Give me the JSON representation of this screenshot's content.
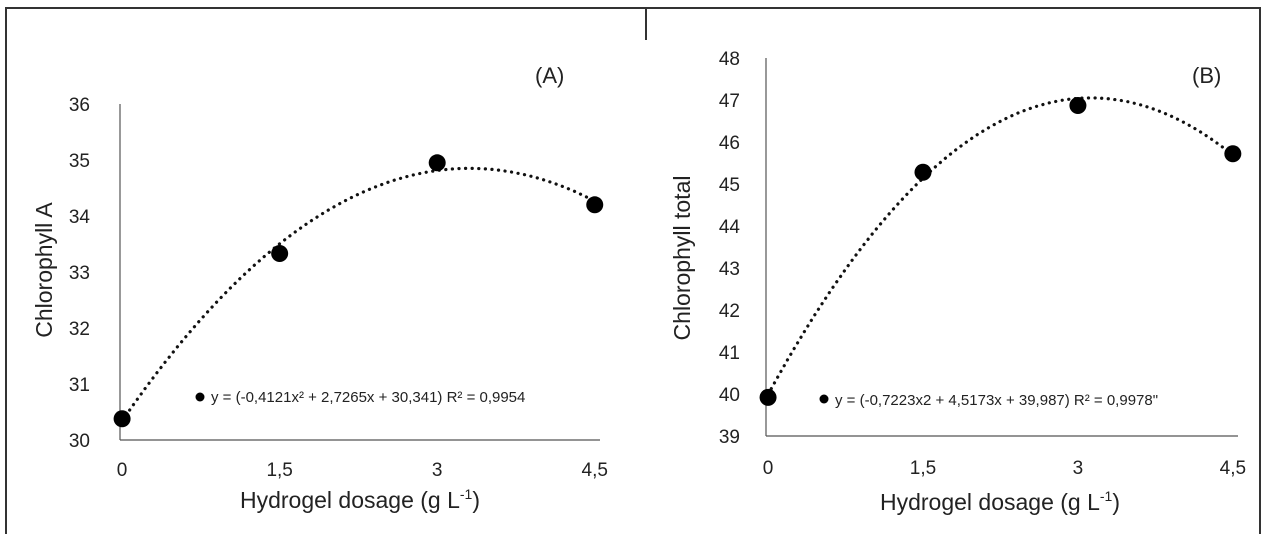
{
  "chart_data": [
    {
      "type": "scatter",
      "panel_label": "(A)",
      "xlabel": "Hydrogel dosage (g L",
      "xlabel_sup": "-1",
      "xlabel_end": ")",
      "ylabel": "Chlorophyll A",
      "x_ticks": [
        "0",
        "1,5",
        "3",
        "4,5"
      ],
      "y_ticks": [
        "30",
        "31",
        "32",
        "33",
        "34",
        "35",
        "36"
      ],
      "ylim": [
        30,
        36
      ],
      "x_positions": [
        0,
        1.5,
        3,
        4.5
      ],
      "points": [
        {
          "x": 0,
          "y": 30.38
        },
        {
          "x": 1.5,
          "y": 33.33
        },
        {
          "x": 3,
          "y": 34.95
        },
        {
          "x": 4.5,
          "y": 34.2
        }
      ],
      "trendline": {
        "type": "polynomial",
        "a": -0.4121,
        "b": 2.7265,
        "c": 30.341,
        "style": "dotted"
      },
      "equation": "y = (-0,4121x² + 2,7265x + 30,341) R² = 0,9954",
      "marker_color": "#000000"
    },
    {
      "type": "scatter",
      "panel_label": "(B)",
      "xlabel": "Hydrogel dosage (g L",
      "xlabel_sup": "-1",
      "xlabel_end": ")",
      "ylabel": "Chlorophyll total",
      "x_ticks": [
        "0",
        "1,5",
        "3",
        "4,5"
      ],
      "y_ticks": [
        "39",
        "40",
        "41",
        "42",
        "43",
        "44",
        "45",
        "46",
        "47",
        "48"
      ],
      "ylim": [
        39,
        48
      ],
      "x_positions": [
        0,
        1.5,
        3,
        4.5
      ],
      "points": [
        {
          "x": 0,
          "y": 39.92
        },
        {
          "x": 1.5,
          "y": 45.28
        },
        {
          "x": 3,
          "y": 46.87
        },
        {
          "x": 4.5,
          "y": 45.72
        }
      ],
      "trendline": {
        "type": "polynomial",
        "a": -0.7223,
        "b": 4.5173,
        "c": 39.987,
        "style": "dotted"
      },
      "equation": "y = (-0,7223x2 + 4,5173x + 39,987) R² = 0,9978\"",
      "marker_color": "#000000"
    }
  ]
}
